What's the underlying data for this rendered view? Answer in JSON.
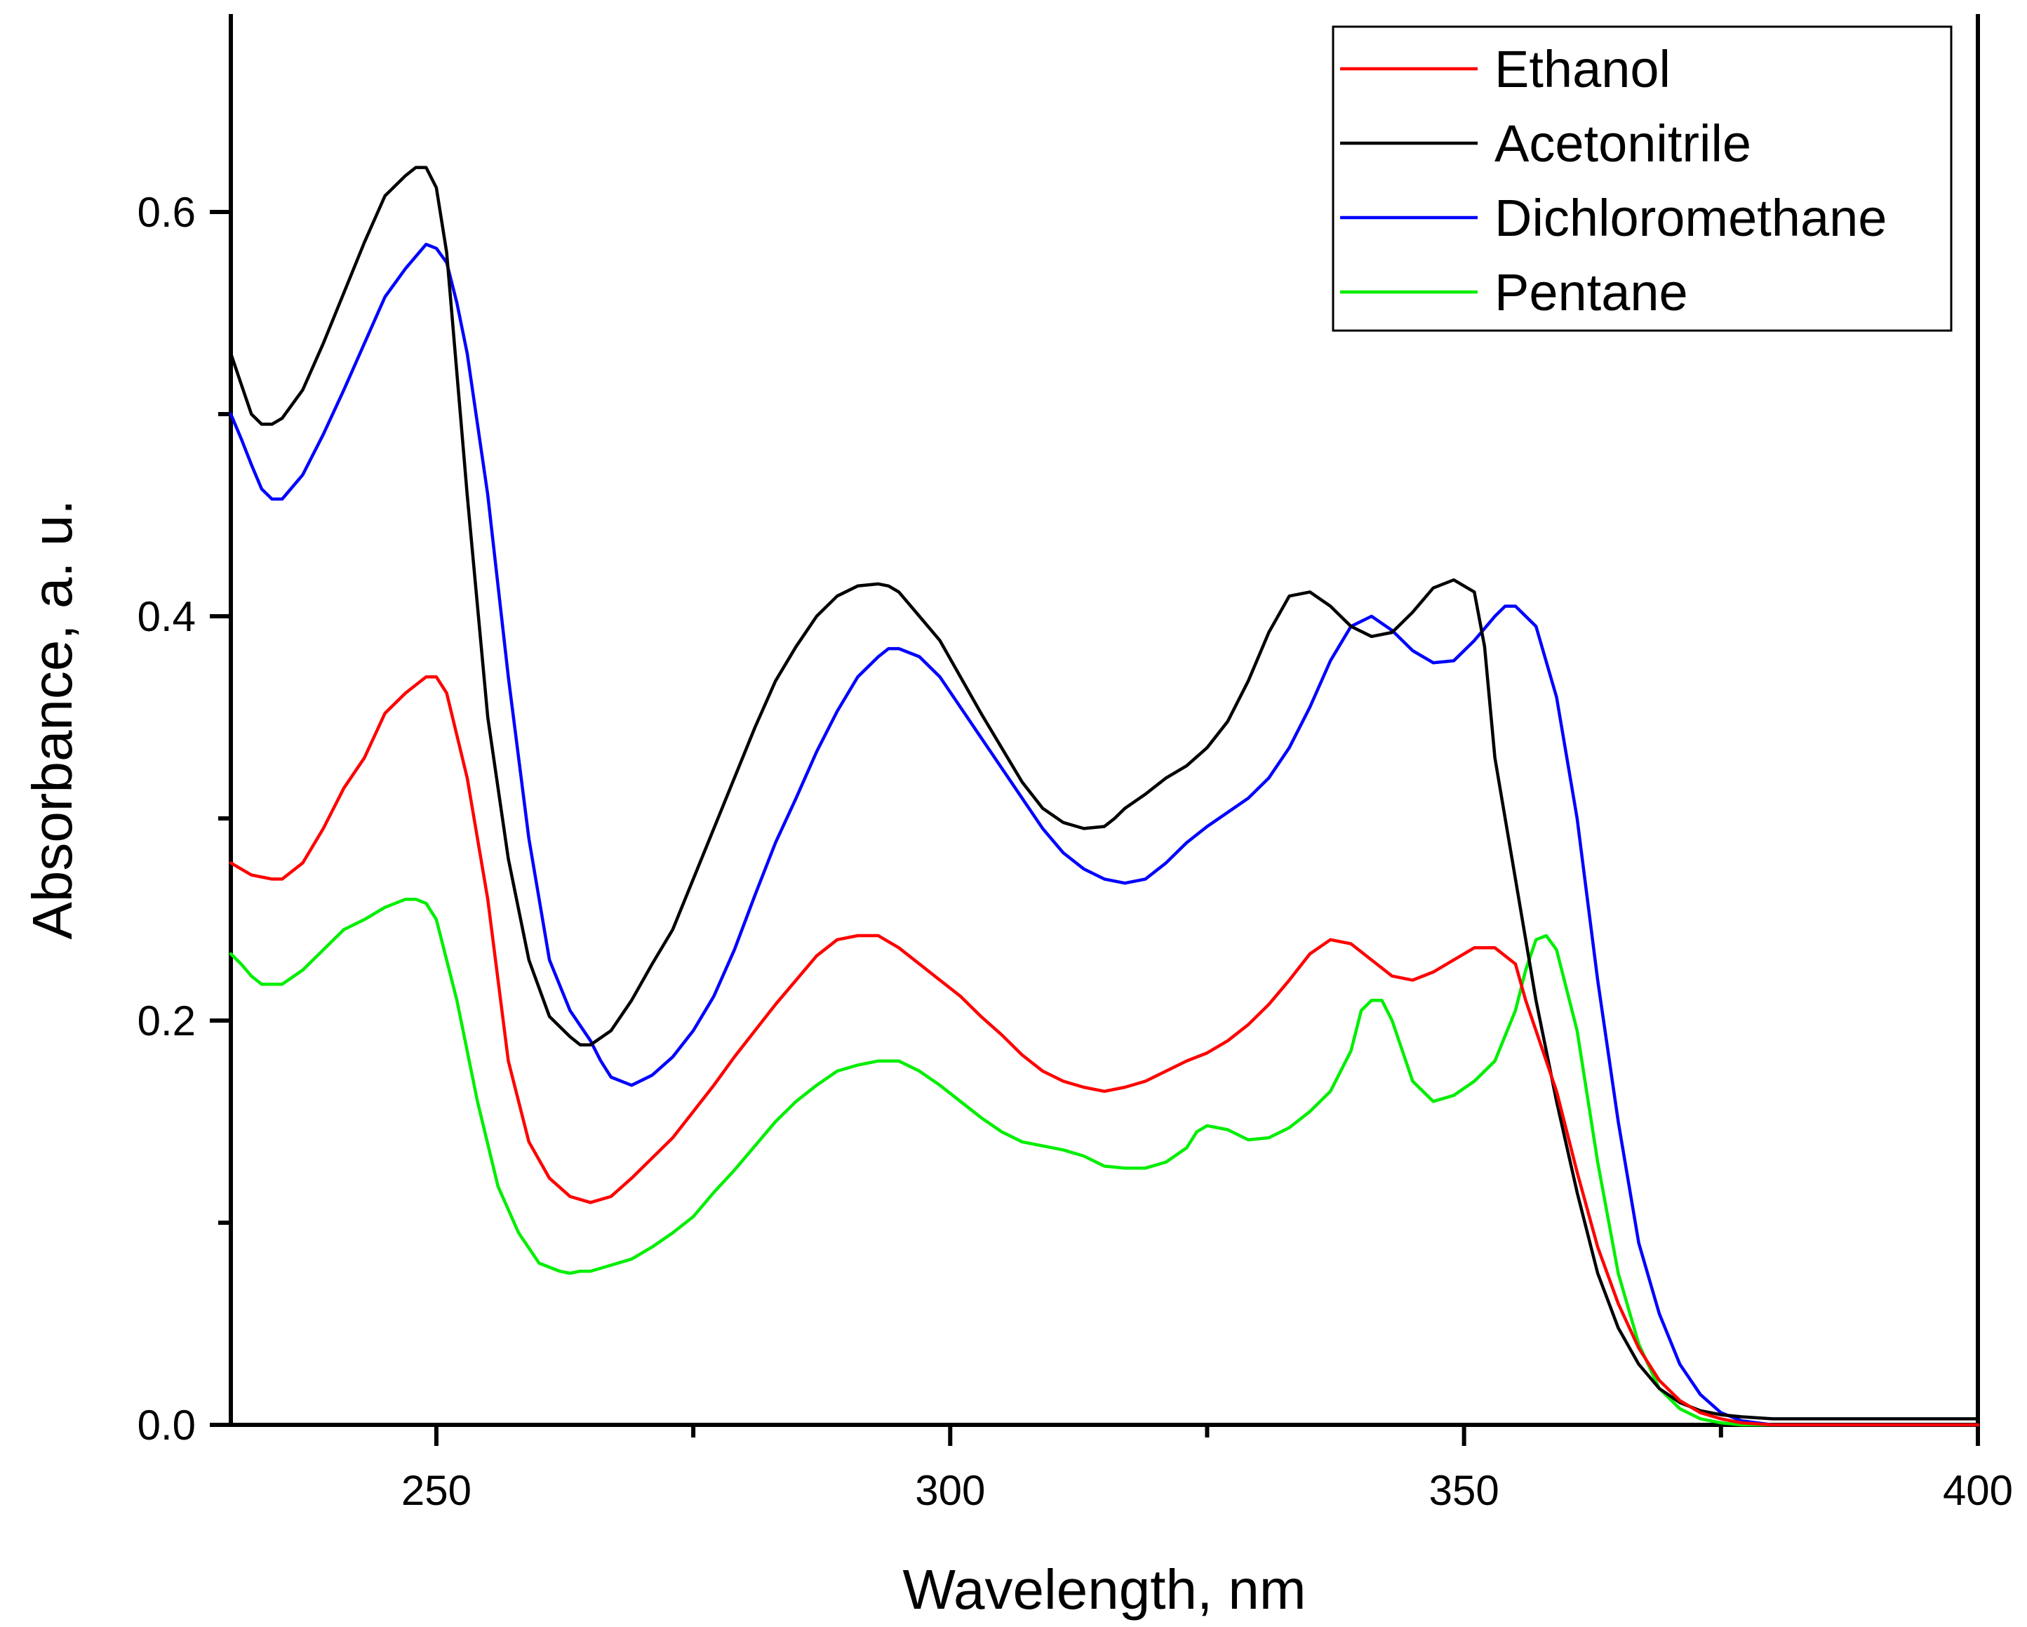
{
  "chart_data": {
    "type": "line",
    "title": "",
    "xlabel": "Wavelength, nm",
    "ylabel": "Absorbance, a. u.",
    "xlim": [
      230,
      400
    ],
    "ylim": [
      0.0,
      0.7
    ],
    "x_ticks": [
      250,
      300,
      350,
      400
    ],
    "x_tick_labels": [
      "250",
      "300",
      "350",
      "400"
    ],
    "x_minor_ticks": [
      275,
      325,
      375
    ],
    "y_ticks": [
      0.0,
      0.2,
      0.4,
      0.6
    ],
    "y_tick_labels": [
      "0.0",
      "0.2",
      "0.4",
      "0.6"
    ],
    "y_minor_ticks": [
      0.1,
      0.3,
      0.5
    ],
    "grid": false,
    "legend_position": "top-right",
    "series": [
      {
        "name": "Ethanol",
        "color": "#ff0000",
        "x": [
          230,
          232,
          234,
          235,
          237,
          239,
          241,
          243,
          245,
          247,
          249,
          250,
          251,
          253,
          255,
          257,
          259,
          261,
          263,
          265,
          267,
          269,
          271,
          273,
          275,
          277,
          279,
          281,
          283,
          285,
          287,
          289,
          291,
          293,
          295,
          297,
          299,
          301,
          303,
          305,
          307,
          309,
          311,
          313,
          315,
          317,
          319,
          321,
          323,
          325,
          327,
          329,
          331,
          333,
          335,
          337,
          339,
          341,
          343,
          345,
          347,
          349,
          351,
          353,
          355,
          356,
          357,
          359,
          361,
          363,
          365,
          367,
          369,
          371,
          373,
          375,
          377,
          380,
          385,
          390,
          400
        ],
        "values": [
          0.278,
          0.272,
          0.27,
          0.27,
          0.278,
          0.295,
          0.315,
          0.33,
          0.352,
          0.362,
          0.37,
          0.37,
          0.362,
          0.32,
          0.26,
          0.18,
          0.14,
          0.122,
          0.113,
          0.11,
          0.113,
          0.122,
          0.132,
          0.142,
          0.155,
          0.168,
          0.182,
          0.195,
          0.208,
          0.22,
          0.232,
          0.24,
          0.242,
          0.242,
          0.236,
          0.228,
          0.22,
          0.212,
          0.202,
          0.193,
          0.183,
          0.175,
          0.17,
          0.167,
          0.165,
          0.167,
          0.17,
          0.175,
          0.18,
          0.184,
          0.19,
          0.198,
          0.208,
          0.22,
          0.233,
          0.24,
          0.238,
          0.23,
          0.222,
          0.22,
          0.224,
          0.23,
          0.236,
          0.236,
          0.228,
          0.21,
          0.195,
          0.165,
          0.125,
          0.088,
          0.06,
          0.038,
          0.022,
          0.012,
          0.006,
          0.003,
          0.001,
          0.0,
          0.0,
          0.0,
          0.0
        ]
      },
      {
        "name": "Acetonitrile",
        "color": "#000000",
        "x": [
          230,
          231,
          232,
          233,
          234,
          235,
          237,
          239,
          241,
          243,
          245,
          247,
          248,
          249,
          250,
          251,
          253,
          255,
          257,
          259,
          261,
          263,
          264,
          265,
          267,
          269,
          271,
          273,
          275,
          277,
          279,
          281,
          283,
          285,
          287,
          289,
          291,
          293,
          294,
          295,
          297,
          299,
          301,
          303,
          305,
          307,
          309,
          311,
          313,
          315,
          316,
          317,
          319,
          321,
          323,
          325,
          327,
          329,
          331,
          333,
          335,
          337,
          339,
          341,
          343,
          345,
          347,
          349,
          351,
          352,
          353,
          355,
          357,
          359,
          361,
          363,
          365,
          367,
          369,
          371,
          373,
          375,
          377,
          380,
          385,
          390,
          395,
          400
        ],
        "values": [
          0.53,
          0.515,
          0.5,
          0.495,
          0.495,
          0.498,
          0.512,
          0.535,
          0.56,
          0.585,
          0.608,
          0.618,
          0.622,
          0.622,
          0.612,
          0.58,
          0.46,
          0.35,
          0.28,
          0.23,
          0.202,
          0.192,
          0.188,
          0.188,
          0.195,
          0.21,
          0.228,
          0.245,
          0.27,
          0.295,
          0.32,
          0.345,
          0.368,
          0.385,
          0.4,
          0.41,
          0.415,
          0.416,
          0.415,
          0.412,
          0.4,
          0.388,
          0.37,
          0.352,
          0.335,
          0.318,
          0.305,
          0.298,
          0.295,
          0.296,
          0.3,
          0.305,
          0.312,
          0.32,
          0.326,
          0.335,
          0.348,
          0.368,
          0.392,
          0.41,
          0.412,
          0.405,
          0.395,
          0.39,
          0.392,
          0.402,
          0.414,
          0.418,
          0.412,
          0.385,
          0.33,
          0.27,
          0.21,
          0.16,
          0.115,
          0.075,
          0.048,
          0.03,
          0.018,
          0.011,
          0.007,
          0.005,
          0.004,
          0.003,
          0.003,
          0.003,
          0.003,
          0.003
        ]
      },
      {
        "name": "Dichloromethane",
        "color": "#0000ff",
        "x": [
          230,
          231,
          232,
          233,
          234,
          235,
          237,
          239,
          241,
          243,
          245,
          247,
          249,
          250,
          251,
          252,
          253,
          255,
          257,
          259,
          261,
          263,
          265,
          266,
          267,
          269,
          271,
          273,
          275,
          277,
          279,
          281,
          283,
          285,
          287,
          289,
          291,
          293,
          294,
          295,
          297,
          299,
          301,
          303,
          305,
          307,
          309,
          311,
          313,
          315,
          317,
          319,
          321,
          323,
          325,
          327,
          329,
          331,
          333,
          335,
          337,
          339,
          341,
          343,
          345,
          347,
          349,
          351,
          353,
          354,
          355,
          357,
          359,
          361,
          363,
          365,
          367,
          369,
          371,
          373,
          375,
          377,
          380,
          385,
          390,
          400
        ],
        "values": [
          0.5,
          0.488,
          0.475,
          0.463,
          0.458,
          0.458,
          0.47,
          0.49,
          0.512,
          0.535,
          0.558,
          0.572,
          0.584,
          0.582,
          0.575,
          0.555,
          0.53,
          0.46,
          0.37,
          0.29,
          0.23,
          0.205,
          0.19,
          0.18,
          0.172,
          0.168,
          0.173,
          0.182,
          0.195,
          0.212,
          0.235,
          0.262,
          0.288,
          0.31,
          0.333,
          0.353,
          0.37,
          0.38,
          0.384,
          0.384,
          0.38,
          0.37,
          0.355,
          0.34,
          0.325,
          0.31,
          0.295,
          0.283,
          0.275,
          0.27,
          0.268,
          0.27,
          0.278,
          0.288,
          0.296,
          0.303,
          0.31,
          0.32,
          0.335,
          0.355,
          0.378,
          0.395,
          0.4,
          0.393,
          0.383,
          0.377,
          0.378,
          0.388,
          0.4,
          0.405,
          0.405,
          0.395,
          0.36,
          0.3,
          0.22,
          0.15,
          0.09,
          0.055,
          0.03,
          0.015,
          0.006,
          0.002,
          0.0,
          0.0,
          0.0,
          0.0
        ]
      },
      {
        "name": "Pentane",
        "color": "#00ee00",
        "x": [
          230,
          231,
          232,
          233,
          235,
          237,
          239,
          241,
          243,
          245,
          247,
          248,
          249,
          250,
          252,
          254,
          256,
          258,
          260,
          262,
          263,
          264,
          265,
          267,
          269,
          271,
          273,
          275,
          277,
          279,
          281,
          283,
          285,
          287,
          289,
          291,
          293,
          295,
          297,
          299,
          301,
          303,
          305,
          307,
          309,
          311,
          313,
          315,
          317,
          319,
          321,
          323,
          324,
          325,
          327,
          329,
          331,
          333,
          335,
          337,
          339,
          340,
          341,
          342,
          343,
          344,
          345,
          347,
          349,
          351,
          353,
          355,
          356,
          357,
          358,
          359,
          361,
          363,
          365,
          367,
          369,
          371,
          373,
          375,
          377,
          380,
          385,
          390,
          400
        ],
        "values": [
          0.233,
          0.228,
          0.222,
          0.218,
          0.218,
          0.225,
          0.235,
          0.245,
          0.25,
          0.256,
          0.26,
          0.26,
          0.258,
          0.25,
          0.21,
          0.16,
          0.118,
          0.095,
          0.08,
          0.076,
          0.075,
          0.076,
          0.076,
          0.079,
          0.082,
          0.088,
          0.095,
          0.103,
          0.115,
          0.126,
          0.138,
          0.15,
          0.16,
          0.168,
          0.175,
          0.178,
          0.18,
          0.18,
          0.175,
          0.168,
          0.16,
          0.152,
          0.145,
          0.14,
          0.138,
          0.136,
          0.133,
          0.128,
          0.127,
          0.127,
          0.13,
          0.137,
          0.145,
          0.148,
          0.146,
          0.141,
          0.142,
          0.147,
          0.155,
          0.165,
          0.185,
          0.205,
          0.21,
          0.21,
          0.2,
          0.185,
          0.17,
          0.16,
          0.163,
          0.17,
          0.18,
          0.205,
          0.225,
          0.24,
          0.242,
          0.235,
          0.195,
          0.13,
          0.075,
          0.04,
          0.018,
          0.008,
          0.003,
          0.001,
          0.0,
          0.0,
          0.0,
          0.0,
          0.0
        ]
      }
    ]
  }
}
